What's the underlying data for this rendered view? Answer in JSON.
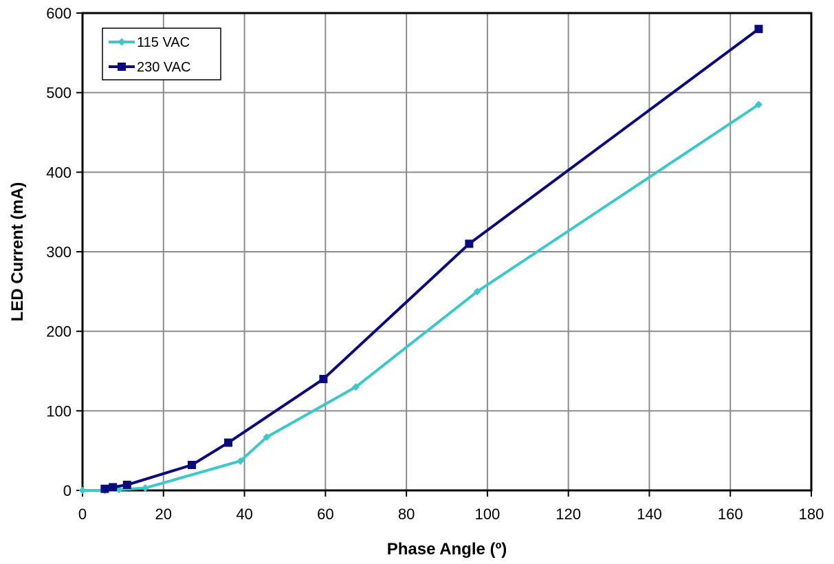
{
  "chart_data": {
    "type": "line",
    "title": "",
    "xlabel": "Phase Angle (º)",
    "ylabel": "LED Current (mA)",
    "xlim": [
      0,
      180
    ],
    "ylim": [
      0,
      600
    ],
    "x_ticks": [
      0,
      20,
      40,
      60,
      80,
      100,
      120,
      140,
      160,
      180
    ],
    "y_ticks": [
      0,
      100,
      200,
      300,
      400,
      500,
      600
    ],
    "x_tick_labels": [
      "0",
      "20",
      "40",
      "60",
      "80",
      "100",
      "120",
      "140",
      "160",
      "180"
    ],
    "y_tick_labels": [
      "0",
      "100",
      "200",
      "300",
      "400",
      "500",
      "600"
    ],
    "grid": true,
    "legend_position": "top-left",
    "series": [
      {
        "name": "115 VAC",
        "color": "#3cc8c8",
        "marker": "diamond",
        "x": [
          0,
          5.5,
          9,
          15.5,
          39,
          45.5,
          67.5,
          97.5,
          167
        ],
        "y": [
          0,
          0,
          1,
          3,
          37,
          67,
          130,
          250,
          485
        ]
      },
      {
        "name": "230 VAC",
        "color": "#0a0a7a",
        "marker": "square",
        "x": [
          5.5,
          7.5,
          11,
          27,
          36,
          59.5,
          95.5,
          167
        ],
        "y": [
          2,
          4,
          7,
          32,
          60,
          140,
          310,
          580
        ]
      }
    ]
  }
}
